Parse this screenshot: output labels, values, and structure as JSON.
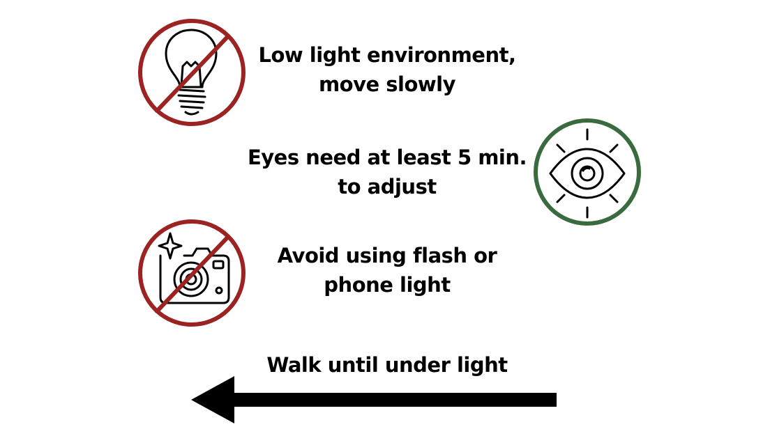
{
  "colors": {
    "prohibited": "#9b2423",
    "allowed": "#3a6b3f",
    "ink": "#000000"
  },
  "items": [
    {
      "icon": "no-light-bulb-icon",
      "status": "prohibited",
      "lines": [
        "Low light environment,",
        "move slowly"
      ]
    },
    {
      "icon": "eye-icon",
      "status": "allowed",
      "lines": [
        "Eyes need at least 5 min.",
        "to adjust"
      ]
    },
    {
      "icon": "no-camera-flash-icon",
      "status": "prohibited",
      "lines": [
        "Avoid using flash or",
        "phone light"
      ]
    },
    {
      "icon": "left-arrow-icon",
      "status": "direction",
      "lines": [
        "Walk until under light"
      ]
    }
  ]
}
